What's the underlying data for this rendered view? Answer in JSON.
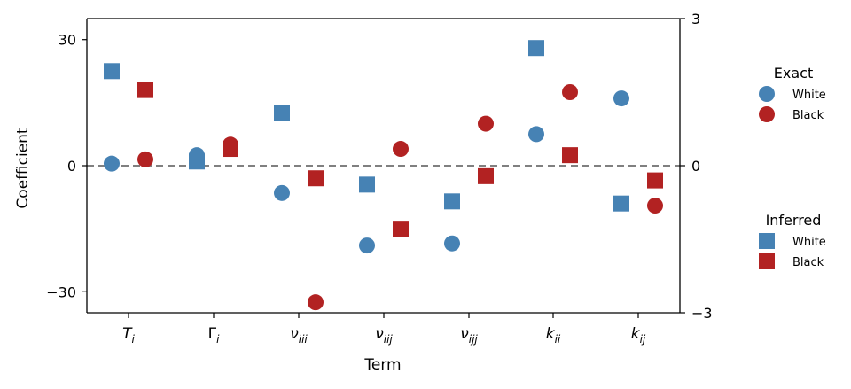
{
  "chart_data": {
    "type": "scatter",
    "xlabel": "Term",
    "ylabel": "Coefficient",
    "categories": [
      "T_i",
      "Γ_i",
      "ν_iii",
      "ν_iij",
      "ν_ijj",
      "k_ii",
      "k_ij"
    ],
    "ylim_left": [
      -35,
      35
    ],
    "yticks_left": [
      30,
      0,
      -30
    ],
    "ytick_labels_left": [
      "30",
      "0",
      "−30"
    ],
    "ylim_right": [
      -3,
      3
    ],
    "yticks_right": [
      3,
      0,
      -3
    ],
    "ytick_labels_right": [
      "3",
      "0",
      "−3"
    ],
    "reference_line_y": 0,
    "colors": {
      "White": "#4682b4",
      "Black": "#b22222",
      "reference": "#808080"
    },
    "legend_placement": "right, outside plot",
    "legends": [
      {
        "title": "Exact",
        "marker": "circle",
        "entries": [
          "White",
          "Black"
        ]
      },
      {
        "title": "Inferred",
        "marker": "square",
        "entries": [
          "White",
          "Black"
        ]
      }
    ],
    "series": [
      {
        "name": "White",
        "group": "Exact",
        "marker": "circle",
        "values": [
          0.5,
          2.5,
          -6.5,
          -19,
          -18.5,
          7.5,
          16
        ]
      },
      {
        "name": "Black",
        "group": "Exact",
        "marker": "circle",
        "values": [
          1.5,
          5,
          -32.5,
          4,
          10,
          17.5,
          -9.5
        ]
      },
      {
        "name": "White",
        "group": "Inferred",
        "marker": "square",
        "values": [
          22.5,
          1,
          12.5,
          -4.5,
          -8.5,
          28,
          -9
        ]
      },
      {
        "name": "Black",
        "group": "Inferred",
        "marker": "square",
        "values": [
          18,
          4,
          -3,
          -15,
          -2.5,
          2.5,
          -3.5
        ]
      }
    ]
  }
}
